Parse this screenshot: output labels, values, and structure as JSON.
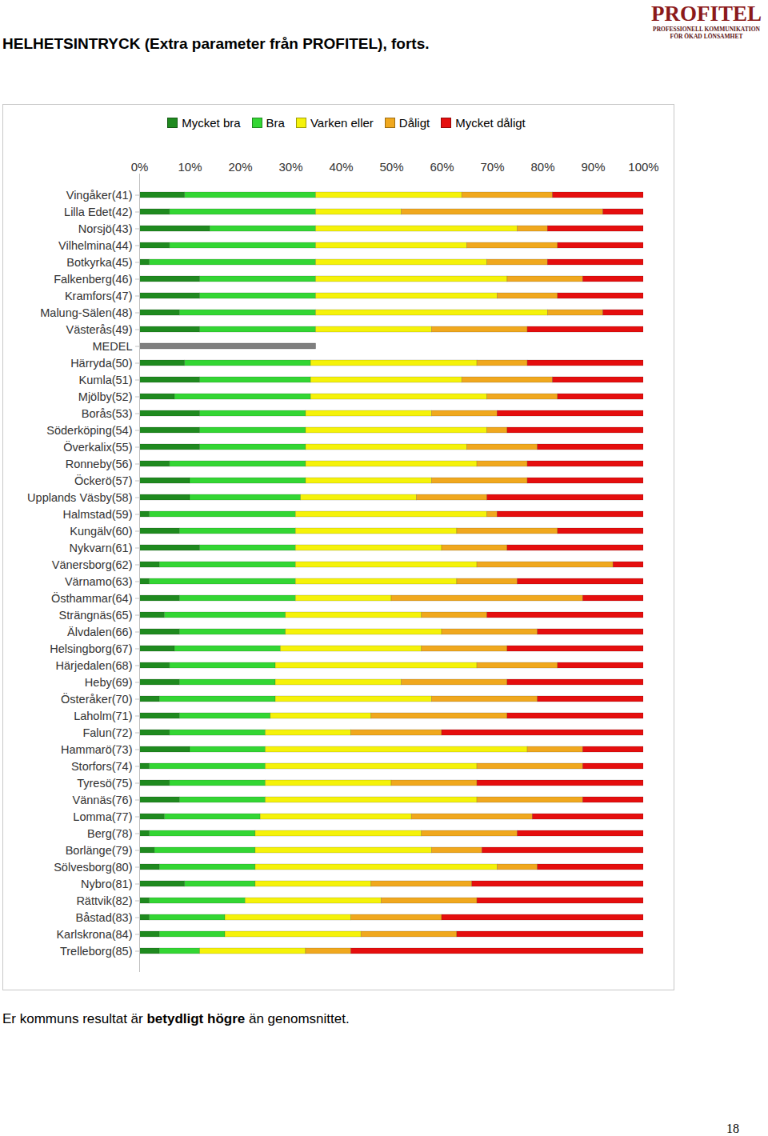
{
  "chart_data": {
    "type": "bar",
    "orientation": "horizontal",
    "stacked": true,
    "title": "HELHETSINTRYCK (Extra parameter från PROFITEL), forts.",
    "categories": [
      "Vingåker(41)",
      "Lilla Edet(42)",
      "Norsjö(43)",
      "Vilhelmina(44)",
      "Botkyrka(45)",
      "Falkenberg(46)",
      "Kramfors(47)",
      "Malung-Sälen(48)",
      "Västerås(49)",
      "MEDEL",
      "Härryda(50)",
      "Kumla(51)",
      "Mjölby(52)",
      "Borås(53)",
      "Söderköping(54)",
      "Överkalix(55)",
      "Ronneby(56)",
      "Öckerö(57)",
      "Upplands Väsby(58)",
      "Halmstad(59)",
      "Kungälv(60)",
      "Nykvarn(61)",
      "Vänersborg(62)",
      "Värnamo(63)",
      "Östhammar(64)",
      "Strängnäs(65)",
      "Älvdalen(66)",
      "Helsingborg(67)",
      "Härjedalen(68)",
      "Heby(69)",
      "Österåker(70)",
      "Laholm(71)",
      "Falun(72)",
      "Hammarö(73)",
      "Storfors(74)",
      "Tyresö(75)",
      "Vännäs(76)",
      "Lomma(77)",
      "Berg(78)",
      "Borlänge(79)",
      "Sölvesborg(80)",
      "Nybro(81)",
      "Rättvik(82)",
      "Båstad(83)",
      "Karlskrona(84)",
      "Trelleborg(85)"
    ],
    "series": [
      {
        "name": "Mycket bra",
        "color": "#1f8a1f",
        "values": [
          9,
          6,
          14,
          6,
          2,
          12,
          12,
          8,
          12,
          null,
          9,
          12,
          7,
          12,
          12,
          12,
          6,
          10,
          10,
          2,
          8,
          12,
          4,
          2,
          8,
          5,
          8,
          7,
          6,
          8,
          4,
          8,
          6,
          10,
          2,
          6,
          8,
          5,
          2,
          3,
          4,
          9,
          2,
          2,
          4,
          4
        ]
      },
      {
        "name": "Bra",
        "color": "#33d633",
        "values": [
          26,
          29,
          21,
          29,
          33,
          23,
          23,
          27,
          23,
          null,
          25,
          22,
          27,
          21,
          21,
          21,
          27,
          23,
          22,
          29,
          23,
          19,
          27,
          29,
          23,
          24,
          21,
          21,
          21,
          19,
          23,
          18,
          19,
          15,
          23,
          19,
          17,
          19,
          21,
          20,
          19,
          14,
          19,
          15,
          13,
          8
        ]
      },
      {
        "name": "Varken eller",
        "color": "#f5f20a",
        "values": [
          29,
          17,
          40,
          30,
          34,
          38,
          36,
          46,
          23,
          null,
          33,
          30,
          35,
          25,
          36,
          32,
          34,
          25,
          23,
          38,
          32,
          29,
          36,
          32,
          19,
          27,
          31,
          28,
          40,
          25,
          31,
          20,
          17,
          52,
          42,
          25,
          42,
          30,
          33,
          35,
          48,
          23,
          27,
          25,
          27,
          21
        ]
      },
      {
        "name": "Dåligt",
        "color": "#f0a81e",
        "values": [
          18,
          40,
          6,
          18,
          12,
          15,
          12,
          11,
          19,
          null,
          10,
          18,
          14,
          13,
          4,
          14,
          10,
          19,
          14,
          2,
          20,
          13,
          27,
          12,
          38,
          13,
          19,
          17,
          16,
          21,
          21,
          27,
          18,
          11,
          21,
          17,
          21,
          24,
          19,
          10,
          8,
          20,
          19,
          18,
          19,
          9
        ]
      },
      {
        "name": "Mycket dåligt",
        "color": "#e50e0e",
        "values": [
          18,
          8,
          19,
          17,
          19,
          12,
          17,
          8,
          23,
          null,
          23,
          18,
          17,
          29,
          27,
          21,
          23,
          23,
          31,
          29,
          17,
          27,
          6,
          25,
          12,
          31,
          21,
          27,
          17,
          27,
          21,
          27,
          40,
          12,
          12,
          33,
          12,
          22,
          25,
          32,
          21,
          34,
          33,
          40,
          37,
          58
        ]
      }
    ],
    "average": {
      "category": "MEDEL",
      "value": 35,
      "color": "#7f7f7f"
    },
    "xlim": [
      0,
      100
    ],
    "xticks": [
      {
        "value": 0,
        "label": "0%"
      },
      {
        "value": 10,
        "label": "10%"
      },
      {
        "value": 20,
        "label": "20%"
      },
      {
        "value": 30,
        "label": "30%"
      },
      {
        "value": 40,
        "label": "40%"
      },
      {
        "value": 50,
        "label": "50%"
      },
      {
        "value": 60,
        "label": "60%"
      },
      {
        "value": 70,
        "label": "70%"
      },
      {
        "value": 80,
        "label": "80%"
      },
      {
        "value": 90,
        "label": "90%"
      },
      {
        "value": 100,
        "label": "100%"
      }
    ],
    "grid": false,
    "legend": "top"
  },
  "logo": {
    "name": "PROFITEL",
    "lines": [
      "PROFESSIONELL KOMMUNIKATION",
      "FÖR ÖKAD LÖNSAMHET"
    ]
  },
  "caption": [
    {
      "text": "Er kommuns resultat är ",
      "bold": false
    },
    {
      "text": "betydligt högre",
      "bold": true
    },
    {
      "text": " än genomsnittet.",
      "bold": false
    }
  ],
  "page_number": "18"
}
